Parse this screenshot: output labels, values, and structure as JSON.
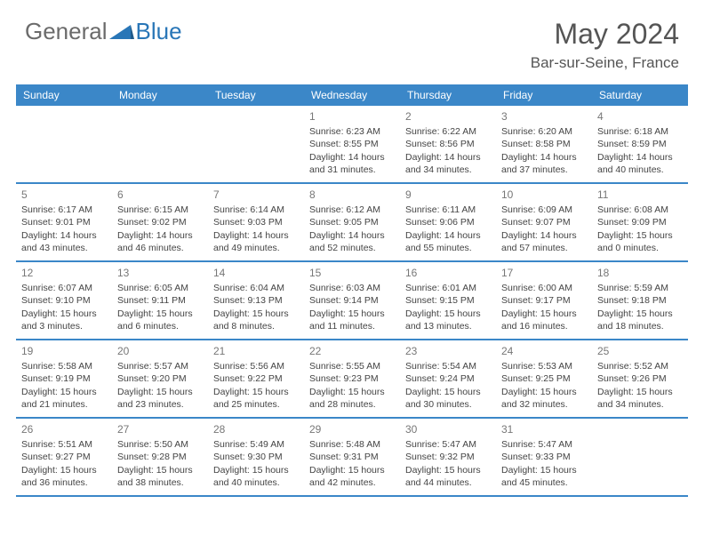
{
  "logo": {
    "general": "General",
    "blue": "Blue"
  },
  "header": {
    "title": "May 2024",
    "location": "Bar-sur-Seine, France"
  },
  "colors": {
    "header_bg": "#3b87c8",
    "header_text": "#ffffff",
    "month_title": "#555555",
    "location_text": "#555555",
    "daynum": "#777777",
    "body_text": "#444444",
    "logo_gray": "#6b6b6b",
    "logo_blue": "#2976b7",
    "divider": "#3b87c8"
  },
  "weekdays": [
    "Sunday",
    "Monday",
    "Tuesday",
    "Wednesday",
    "Thursday",
    "Friday",
    "Saturday"
  ],
  "weeks": [
    [
      null,
      null,
      null,
      {
        "day": "1",
        "sunrise": "Sunrise: 6:23 AM",
        "sunset": "Sunset: 8:55 PM",
        "daylight": "Daylight: 14 hours and 31 minutes."
      },
      {
        "day": "2",
        "sunrise": "Sunrise: 6:22 AM",
        "sunset": "Sunset: 8:56 PM",
        "daylight": "Daylight: 14 hours and 34 minutes."
      },
      {
        "day": "3",
        "sunrise": "Sunrise: 6:20 AM",
        "sunset": "Sunset: 8:58 PM",
        "daylight": "Daylight: 14 hours and 37 minutes."
      },
      {
        "day": "4",
        "sunrise": "Sunrise: 6:18 AM",
        "sunset": "Sunset: 8:59 PM",
        "daylight": "Daylight: 14 hours and 40 minutes."
      }
    ],
    [
      {
        "day": "5",
        "sunrise": "Sunrise: 6:17 AM",
        "sunset": "Sunset: 9:01 PM",
        "daylight": "Daylight: 14 hours and 43 minutes."
      },
      {
        "day": "6",
        "sunrise": "Sunrise: 6:15 AM",
        "sunset": "Sunset: 9:02 PM",
        "daylight": "Daylight: 14 hours and 46 minutes."
      },
      {
        "day": "7",
        "sunrise": "Sunrise: 6:14 AM",
        "sunset": "Sunset: 9:03 PM",
        "daylight": "Daylight: 14 hours and 49 minutes."
      },
      {
        "day": "8",
        "sunrise": "Sunrise: 6:12 AM",
        "sunset": "Sunset: 9:05 PM",
        "daylight": "Daylight: 14 hours and 52 minutes."
      },
      {
        "day": "9",
        "sunrise": "Sunrise: 6:11 AM",
        "sunset": "Sunset: 9:06 PM",
        "daylight": "Daylight: 14 hours and 55 minutes."
      },
      {
        "day": "10",
        "sunrise": "Sunrise: 6:09 AM",
        "sunset": "Sunset: 9:07 PM",
        "daylight": "Daylight: 14 hours and 57 minutes."
      },
      {
        "day": "11",
        "sunrise": "Sunrise: 6:08 AM",
        "sunset": "Sunset: 9:09 PM",
        "daylight": "Daylight: 15 hours and 0 minutes."
      }
    ],
    [
      {
        "day": "12",
        "sunrise": "Sunrise: 6:07 AM",
        "sunset": "Sunset: 9:10 PM",
        "daylight": "Daylight: 15 hours and 3 minutes."
      },
      {
        "day": "13",
        "sunrise": "Sunrise: 6:05 AM",
        "sunset": "Sunset: 9:11 PM",
        "daylight": "Daylight: 15 hours and 6 minutes."
      },
      {
        "day": "14",
        "sunrise": "Sunrise: 6:04 AM",
        "sunset": "Sunset: 9:13 PM",
        "daylight": "Daylight: 15 hours and 8 minutes."
      },
      {
        "day": "15",
        "sunrise": "Sunrise: 6:03 AM",
        "sunset": "Sunset: 9:14 PM",
        "daylight": "Daylight: 15 hours and 11 minutes."
      },
      {
        "day": "16",
        "sunrise": "Sunrise: 6:01 AM",
        "sunset": "Sunset: 9:15 PM",
        "daylight": "Daylight: 15 hours and 13 minutes."
      },
      {
        "day": "17",
        "sunrise": "Sunrise: 6:00 AM",
        "sunset": "Sunset: 9:17 PM",
        "daylight": "Daylight: 15 hours and 16 minutes."
      },
      {
        "day": "18",
        "sunrise": "Sunrise: 5:59 AM",
        "sunset": "Sunset: 9:18 PM",
        "daylight": "Daylight: 15 hours and 18 minutes."
      }
    ],
    [
      {
        "day": "19",
        "sunrise": "Sunrise: 5:58 AM",
        "sunset": "Sunset: 9:19 PM",
        "daylight": "Daylight: 15 hours and 21 minutes."
      },
      {
        "day": "20",
        "sunrise": "Sunrise: 5:57 AM",
        "sunset": "Sunset: 9:20 PM",
        "daylight": "Daylight: 15 hours and 23 minutes."
      },
      {
        "day": "21",
        "sunrise": "Sunrise: 5:56 AM",
        "sunset": "Sunset: 9:22 PM",
        "daylight": "Daylight: 15 hours and 25 minutes."
      },
      {
        "day": "22",
        "sunrise": "Sunrise: 5:55 AM",
        "sunset": "Sunset: 9:23 PM",
        "daylight": "Daylight: 15 hours and 28 minutes."
      },
      {
        "day": "23",
        "sunrise": "Sunrise: 5:54 AM",
        "sunset": "Sunset: 9:24 PM",
        "daylight": "Daylight: 15 hours and 30 minutes."
      },
      {
        "day": "24",
        "sunrise": "Sunrise: 5:53 AM",
        "sunset": "Sunset: 9:25 PM",
        "daylight": "Daylight: 15 hours and 32 minutes."
      },
      {
        "day": "25",
        "sunrise": "Sunrise: 5:52 AM",
        "sunset": "Sunset: 9:26 PM",
        "daylight": "Daylight: 15 hours and 34 minutes."
      }
    ],
    [
      {
        "day": "26",
        "sunrise": "Sunrise: 5:51 AM",
        "sunset": "Sunset: 9:27 PM",
        "daylight": "Daylight: 15 hours and 36 minutes."
      },
      {
        "day": "27",
        "sunrise": "Sunrise: 5:50 AM",
        "sunset": "Sunset: 9:28 PM",
        "daylight": "Daylight: 15 hours and 38 minutes."
      },
      {
        "day": "28",
        "sunrise": "Sunrise: 5:49 AM",
        "sunset": "Sunset: 9:30 PM",
        "daylight": "Daylight: 15 hours and 40 minutes."
      },
      {
        "day": "29",
        "sunrise": "Sunrise: 5:48 AM",
        "sunset": "Sunset: 9:31 PM",
        "daylight": "Daylight: 15 hours and 42 minutes."
      },
      {
        "day": "30",
        "sunrise": "Sunrise: 5:47 AM",
        "sunset": "Sunset: 9:32 PM",
        "daylight": "Daylight: 15 hours and 44 minutes."
      },
      {
        "day": "31",
        "sunrise": "Sunrise: 5:47 AM",
        "sunset": "Sunset: 9:33 PM",
        "daylight": "Daylight: 15 hours and 45 minutes."
      },
      null
    ]
  ]
}
